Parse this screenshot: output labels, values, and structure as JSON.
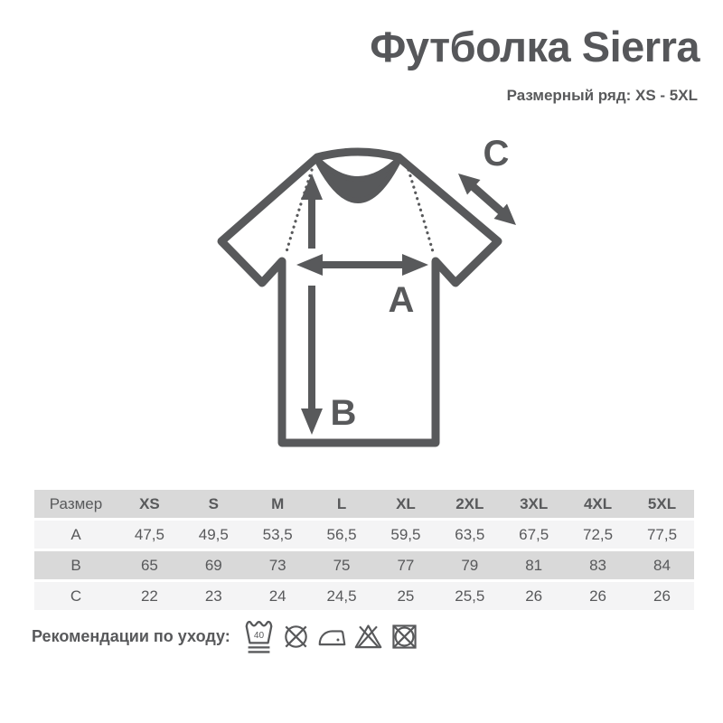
{
  "header": {
    "title": "Футболка Sierra",
    "subtitle": "Размерный ряд: XS - 5XL"
  },
  "diagram": {
    "label_a": "A",
    "label_b": "B",
    "label_c": "C"
  },
  "size_table": {
    "columns": [
      "Размер",
      "XS",
      "S",
      "M",
      "L",
      "XL",
      "2XL",
      "3XL",
      "4XL",
      "5XL"
    ],
    "rows": [
      {
        "label": "A",
        "values": [
          "47,5",
          "49,5",
          "53,5",
          "56,5",
          "59,5",
          "63,5",
          "67,5",
          "72,5",
          "77,5"
        ]
      },
      {
        "label": "B",
        "values": [
          "65",
          "69",
          "73",
          "75",
          "77",
          "79",
          "81",
          "83",
          "84"
        ]
      },
      {
        "label": "C",
        "values": [
          "22",
          "23",
          "24",
          "24,5",
          "25",
          "25,5",
          "26",
          "26",
          "26"
        ]
      }
    ]
  },
  "care": {
    "label": "Рекомендации по уходу:",
    "icons": [
      {
        "name": "wash-40-gentle-icon",
        "text": "40"
      },
      {
        "name": "do-not-dry-clean-icon"
      },
      {
        "name": "iron-low-temp-icon"
      },
      {
        "name": "do-not-bleach-icon"
      },
      {
        "name": "do-not-tumble-dry-icon"
      }
    ]
  },
  "colors": {
    "ink": "#58595b",
    "table_dark_row": "#d9d9d9",
    "table_light_row": "#f4f4f5",
    "background": "#ffffff"
  }
}
